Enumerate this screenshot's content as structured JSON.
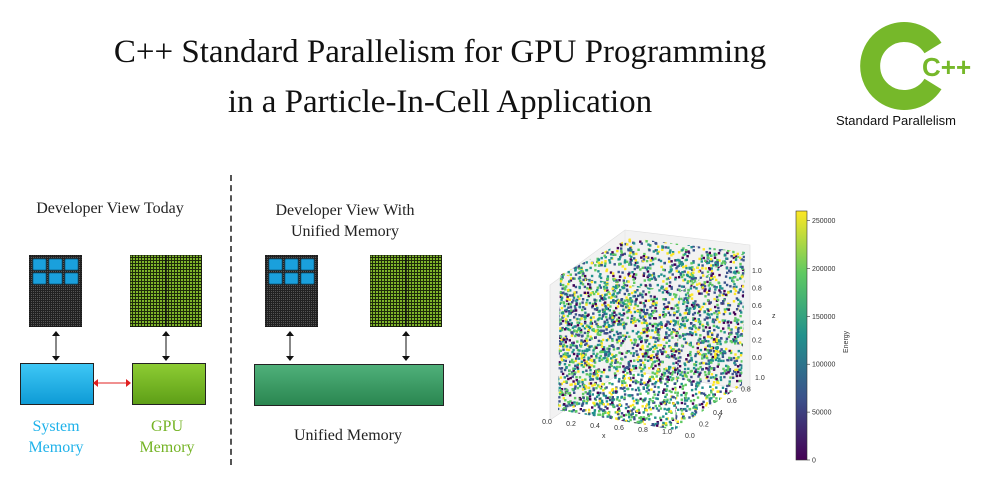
{
  "title": {
    "line1": "C++ Standard Parallelism for GPU Programming",
    "line2": "in a Particle-In-Cell Application"
  },
  "logo": {
    "text": "Standard Parallelism",
    "mark": "C++",
    "color": "#76b82a"
  },
  "left_panel": {
    "caption": "Developer View Today",
    "system_memory": {
      "line1": "System",
      "line2": "Memory",
      "color": "#1fb2ea"
    },
    "gpu_memory": {
      "line1": "GPU",
      "line2": "Memory",
      "color": "#74b324"
    }
  },
  "middle_panel": {
    "caption_line1": "Developer View With",
    "caption_line2": "Unified Memory",
    "unified_label": "Unified Memory",
    "unified_color": "#2f8f5b"
  },
  "chart_data": {
    "type": "scatter",
    "title": "",
    "x_label": "x",
    "y_label": "y",
    "z_label": "z",
    "colorbar_label": "Energy",
    "x_ticks": [
      "0.0",
      "0.2",
      "0.4",
      "0.6",
      "0.8",
      "1.0"
    ],
    "y_ticks": [
      "0.0",
      "0.2",
      "0.4",
      "0.6",
      "0.8",
      "1.0"
    ],
    "z_ticks": [
      "0.0",
      "0.2",
      "0.4",
      "0.6",
      "0.8",
      "1.0"
    ],
    "colorbar_ticks": [
      "0",
      "50000",
      "100000",
      "150000",
      "200000",
      "250000"
    ],
    "colorbar_range": [
      0,
      260000
    ],
    "colormap": [
      "#440154",
      "#3b528b",
      "#21918c",
      "#5ec962",
      "#fde725"
    ]
  }
}
